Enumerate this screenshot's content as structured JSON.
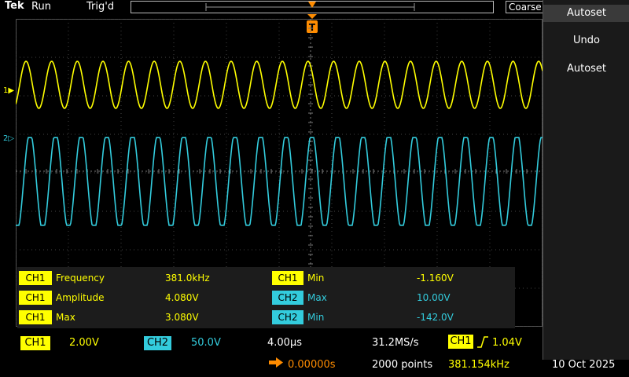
{
  "topbar": {
    "logo": "Tek",
    "run_state": "Run",
    "trigger_state": "Trig'd",
    "coarse_label": "Coarse"
  },
  "channels": {
    "ch1_marker": "1",
    "ch2_marker": "2",
    "ch1_color": "#ffff00",
    "ch2_color": "#33ccdd"
  },
  "right_panel": {
    "title": "Autoset",
    "items": [
      "Undo",
      "Autoset"
    ]
  },
  "measurements": [
    {
      "channel": "CH1",
      "label": "Frequency",
      "value": "381.0kHz"
    },
    {
      "channel": "CH1",
      "label": "Amplitude",
      "value": "4.080V"
    },
    {
      "channel": "CH1",
      "label": "Max",
      "value": "3.080V"
    },
    {
      "channel": "CH1",
      "label": "Min",
      "value": "-1.160V"
    },
    {
      "channel": "CH2",
      "label": "Max",
      "value": "10.00V"
    },
    {
      "channel": "CH2",
      "label": "Min",
      "value": "-142.0V"
    }
  ],
  "bottom": {
    "ch1_label": "CH1",
    "ch1_scale": "2.00V",
    "ch2_label": "CH2",
    "ch2_scale": "50.0V",
    "time_scale": "4.00µs",
    "sample_rate": "31.2MS/s",
    "trig_channel": "CH1",
    "trig_slope_icon": "rising-edge-icon",
    "trig_level": "1.04V",
    "position": "0.00000s",
    "record_length": "2000 points",
    "trig_frequency": "381.154kHz",
    "date": "10 Oct 2025"
  }
}
